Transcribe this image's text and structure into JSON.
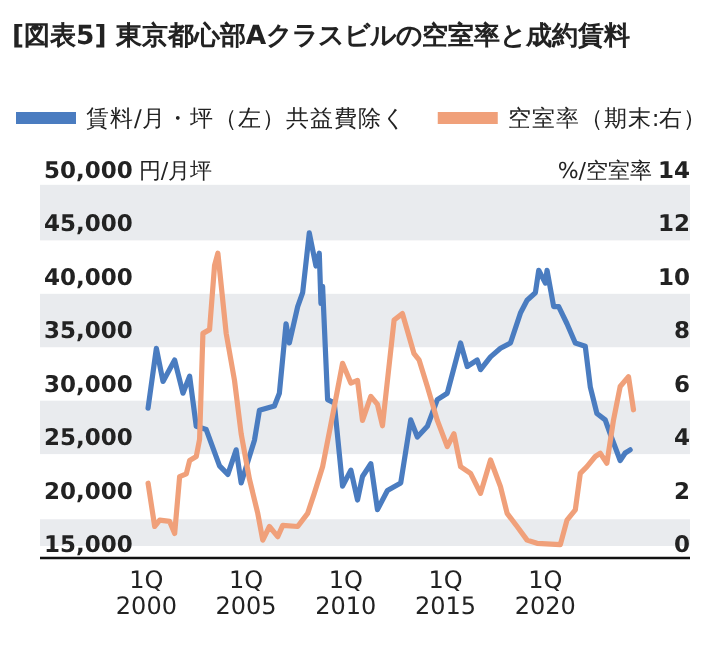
{
  "chart_data": {
    "type": "line",
    "title": "[図表5] 東京都心部Aクラスビルの空室率と成約賃料",
    "ylabel": "円/月坪",
    "y2label": "%/空室率",
    "legend": "top",
    "line_style": "solid",
    "bands": [
      {
        "axis": "y",
        "from": 43600,
        "to": 48800,
        "color": "#e9ebee"
      },
      {
        "axis": "y",
        "from": 33600,
        "to": 38600,
        "color": "#e9ebee"
      },
      {
        "axis": "y",
        "from": 23600,
        "to": 28600,
        "color": "#e9ebee"
      },
      {
        "axis": "y",
        "from": 15000,
        "to": 17500,
        "color": "#e9ebee"
      }
    ],
    "xlim": [
      "1994-09",
      "2027-04"
    ],
    "xticks": [
      {
        "value": "2000-01",
        "label": "1Q\n2000"
      },
      {
        "value": "2005-01",
        "label": "1Q\n2005"
      },
      {
        "value": "2010-01",
        "label": "1Q\n2010"
      },
      {
        "value": "2015-01",
        "label": "1Q\n2015"
      },
      {
        "value": "2020-01",
        "label": "1Q\n2020"
      }
    ],
    "ylim": [
      15000,
      50000
    ],
    "yticks": [
      {
        "value": 15000,
        "label": "15,000"
      },
      {
        "value": 20000,
        "label": "20,000"
      },
      {
        "value": 25000,
        "label": "25,000"
      },
      {
        "value": 30000,
        "label": "30,000"
      },
      {
        "value": 35000,
        "label": "35,000"
      },
      {
        "value": 40000,
        "label": "40,000"
      },
      {
        "value": 45000,
        "label": "45,000"
      },
      {
        "value": 50000,
        "label": "50,000"
      }
    ],
    "y2lim": [
      0,
      14
    ],
    "y2ticks": [
      0,
      2,
      4,
      6,
      8,
      10,
      12,
      14
    ],
    "series": [
      {
        "name": "賃料/月・坪（左）共益費除く",
        "color": "#4a7cc0",
        "x": [
          "2000-02",
          "2000-07",
          "2000-11",
          "2001-06",
          "2001-11",
          "2002-03",
          "2002-07",
          "2003-01",
          "2003-09",
          "2004-02",
          "2004-07",
          "2004-10",
          "2005-06",
          "2005-09",
          "2006-06",
          "2006-09",
          "2007-01",
          "2007-03",
          "2007-08",
          "2007-11",
          "2008-03",
          "2008-07",
          "2008-09",
          "2008-10",
          "2008-11",
          "2009-02",
          "2009-06",
          "2009-11",
          "2010-04",
          "2010-08",
          "2010-11",
          "2011-04",
          "2011-08",
          "2012-02",
          "2012-10",
          "2013-04",
          "2013-08",
          "2014-02",
          "2014-08",
          "2015-02",
          "2015-10",
          "2016-02",
          "2016-08",
          "2016-10",
          "2017-04",
          "2017-10",
          "2018-04",
          "2018-10",
          "2019-02",
          "2019-07",
          "2019-09",
          "2020-01",
          "2020-02",
          "2020-06",
          "2020-09",
          "2021-02",
          "2021-07",
          "2022-01",
          "2022-04",
          "2022-08",
          "2023-01",
          "2023-04",
          "2023-10",
          "2024-01",
          "2024-04"
        ],
        "values": [
          27900,
          33500,
          30400,
          32400,
          29300,
          30900,
          26200,
          25900,
          22500,
          21700,
          24000,
          20900,
          24900,
          27700,
          28100,
          29300,
          35800,
          34000,
          37400,
          38700,
          44300,
          41200,
          42400,
          37700,
          39300,
          28700,
          28400,
          20600,
          22100,
          19300,
          21500,
          22700,
          18400,
          20200,
          20900,
          26800,
          25200,
          26200,
          28700,
          29300,
          34000,
          31800,
          32400,
          31500,
          32700,
          33500,
          34000,
          36800,
          38000,
          38700,
          40800,
          39600,
          40800,
          37400,
          37400,
          35800,
          34000,
          33700,
          29900,
          27400,
          26800,
          25500,
          23000,
          23700,
          24000
        ]
      },
      {
        "name": "空室率（期末:右）",
        "color": "#f0a07a",
        "axis": "y2",
        "x": [
          "2000-02",
          "2000-06",
          "2000-09",
          "2001-03",
          "2001-06",
          "2001-09",
          "2002-01",
          "2002-03",
          "2002-07",
          "2002-09",
          "2002-11",
          "2003-03",
          "2003-06",
          "2003-08",
          "2004-01",
          "2004-06",
          "2004-10",
          "2005-03",
          "2005-08",
          "2005-11",
          "2006-03",
          "2006-08",
          "2006-11",
          "2007-08",
          "2008-02",
          "2008-06",
          "2008-11",
          "2009-06",
          "2009-11",
          "2010-04",
          "2010-08",
          "2010-11",
          "2011-04",
          "2011-08",
          "2011-11",
          "2012-06",
          "2012-11",
          "2013-06",
          "2013-09",
          "2014-02",
          "2014-08",
          "2015-02",
          "2015-06",
          "2015-10",
          "2016-04",
          "2016-10",
          "2017-04",
          "2017-10",
          "2018-02",
          "2018-08",
          "2019-02",
          "2019-08",
          "2020-10",
          "2021-02",
          "2021-07",
          "2021-10",
          "2022-02",
          "2022-07",
          "2022-10",
          "2023-02",
          "2023-06",
          "2023-10",
          "2024-03",
          "2024-06"
        ],
        "values": [
          2.35,
          0.73,
          0.97,
          0.92,
          0.47,
          2.6,
          2.7,
          3.2,
          3.35,
          4.0,
          7.96,
          8.1,
          10.5,
          10.96,
          7.96,
          6.2,
          4.2,
          2.5,
          1.22,
          0.22,
          0.73,
          0.35,
          0.77,
          0.73,
          1.22,
          1.97,
          2.97,
          5.2,
          6.84,
          6.1,
          6.2,
          4.7,
          5.6,
          5.3,
          4.5,
          8.46,
          8.7,
          7.2,
          6.97,
          5.97,
          4.7,
          3.72,
          4.2,
          2.97,
          2.72,
          1.97,
          3.22,
          2.22,
          1.22,
          0.73,
          0.22,
          0.1,
          0.05,
          0.97,
          1.35,
          2.72,
          2.97,
          3.35,
          3.47,
          3.1,
          4.72,
          5.97,
          6.34,
          5.1
        ]
      }
    ]
  }
}
